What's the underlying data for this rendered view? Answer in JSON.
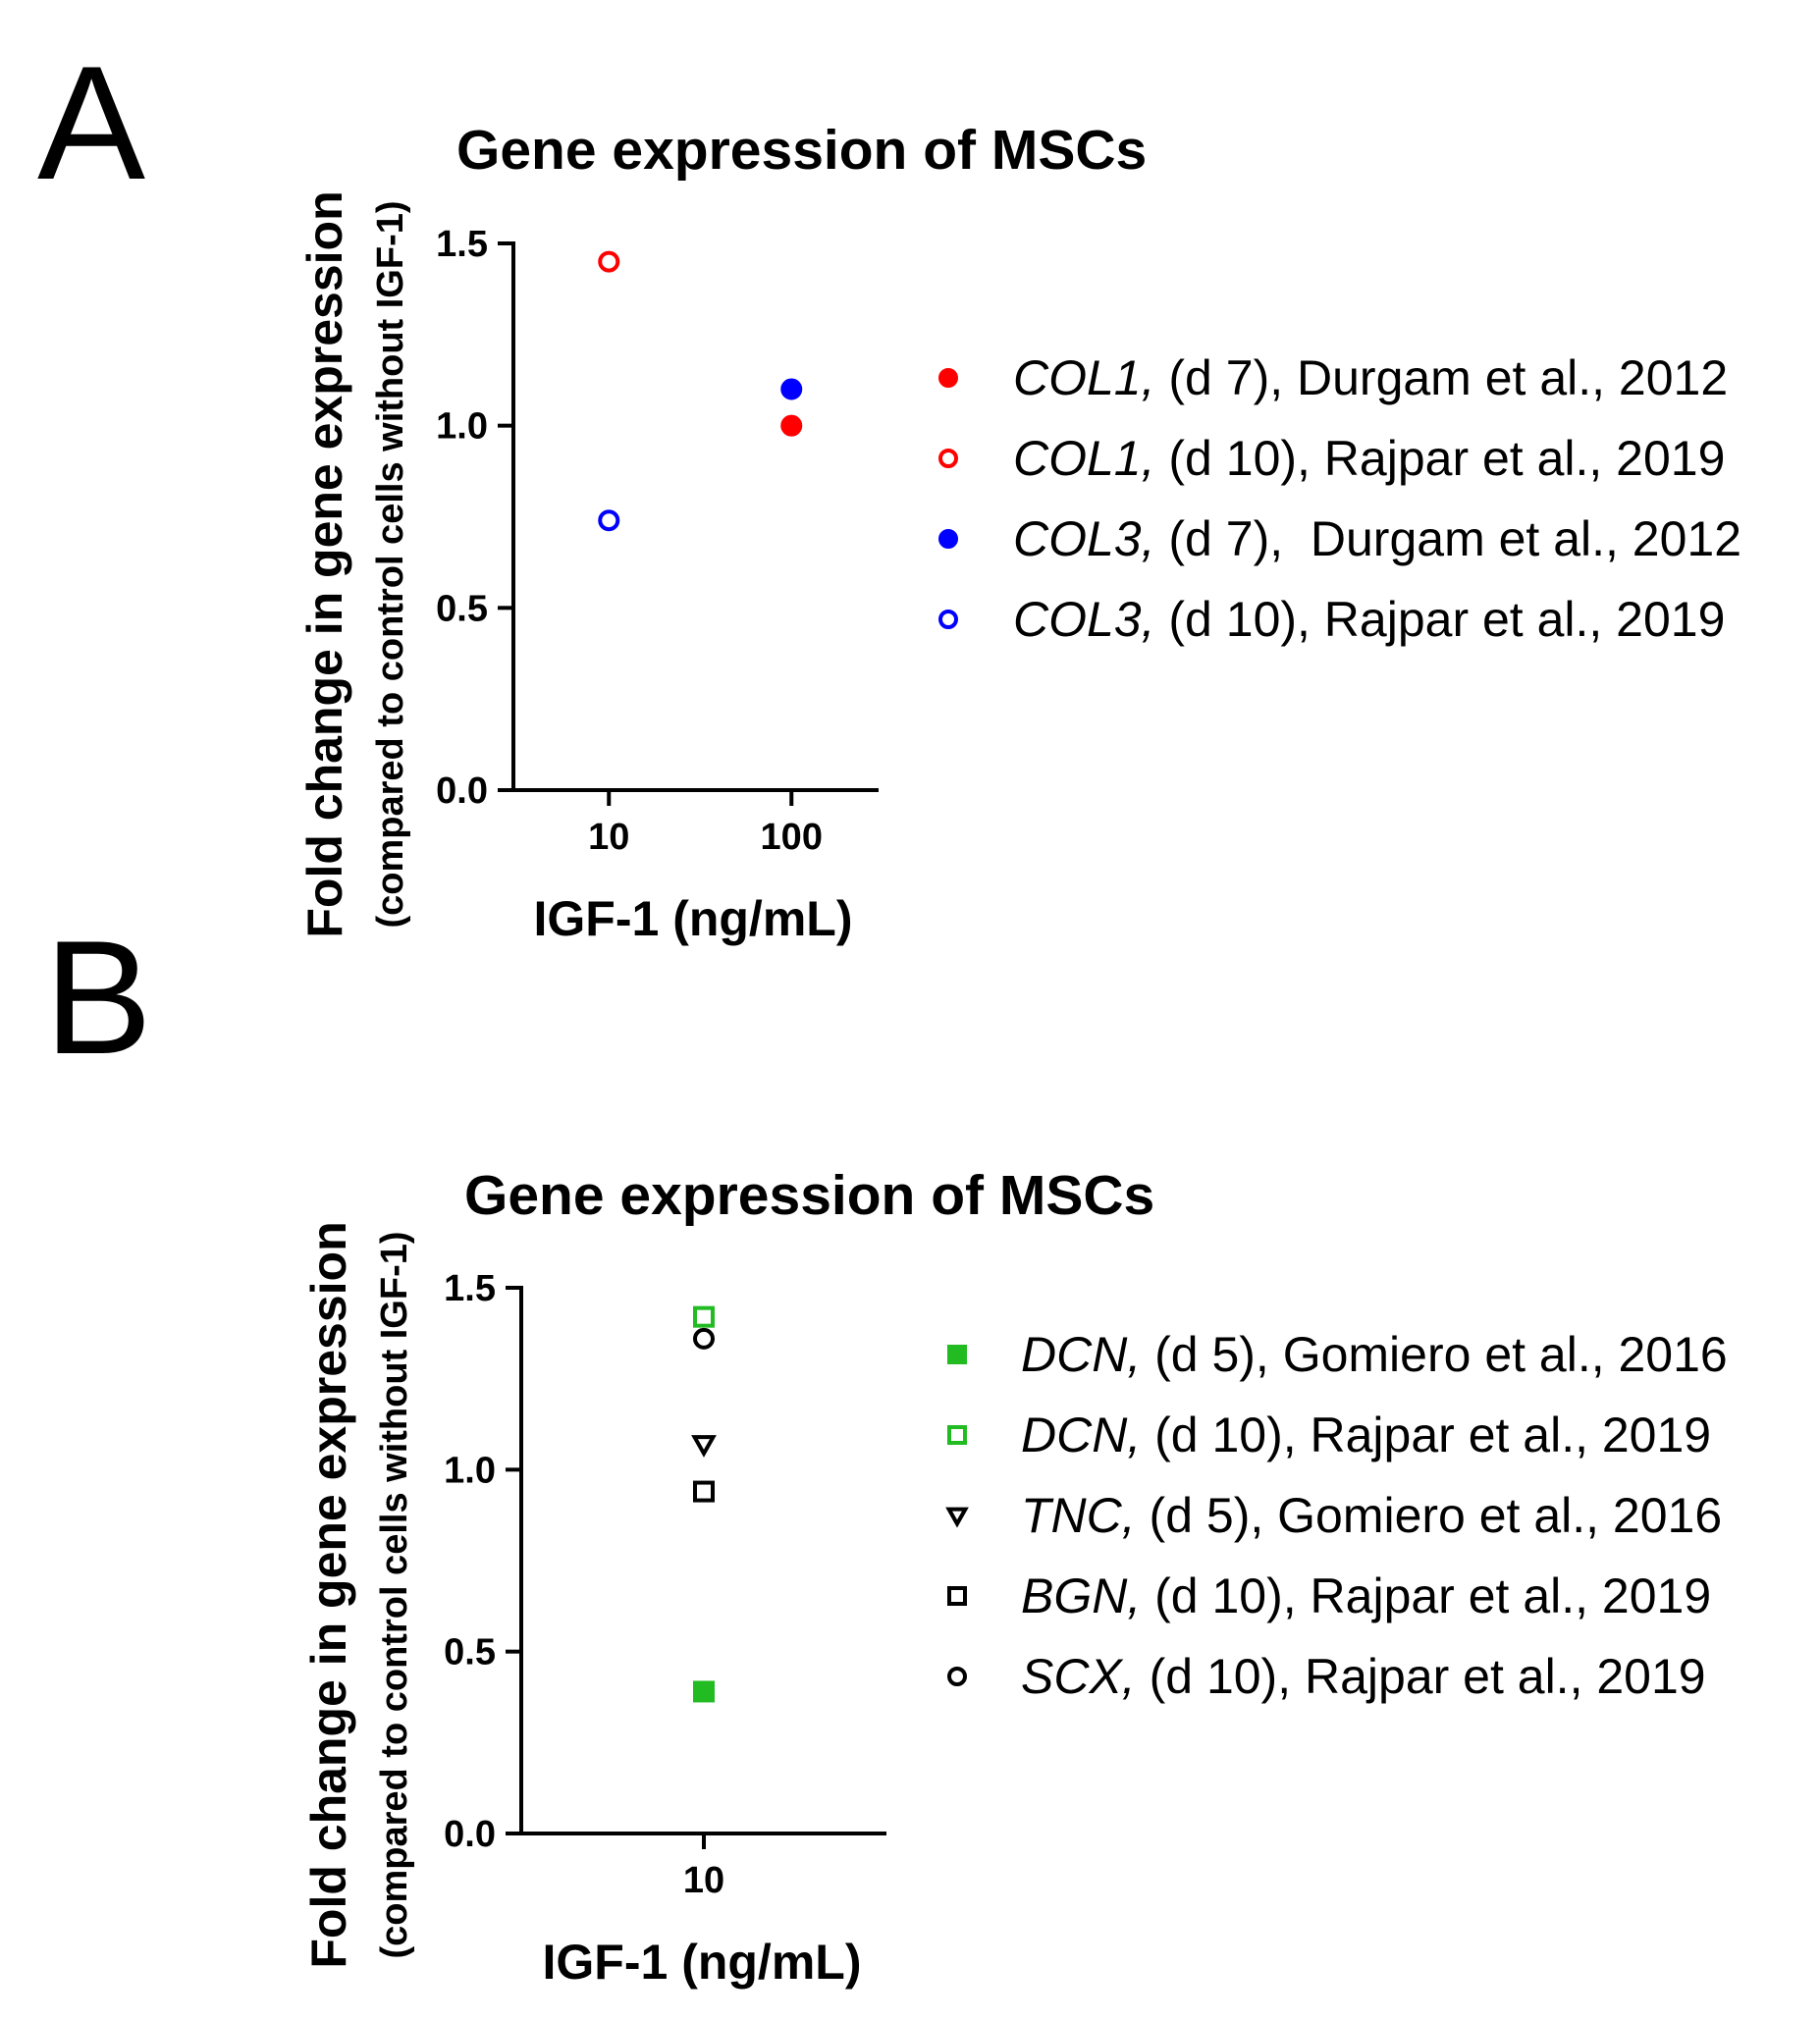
{
  "panels": [
    {
      "letter": "A"
    },
    {
      "letter": "B"
    }
  ],
  "chart_data": [
    {
      "type": "scatter",
      "panel": "A",
      "title": "Gene expression of MSCs",
      "ylabel": "Fold change in gene expression",
      "ylabel_sub": "(compared to control cells without IGF-1)",
      "xlabel": "IGF-1 (ng/mL)",
      "xscale": "log",
      "xlim": [
        3,
        300
      ],
      "ylim": [
        0,
        1.5
      ],
      "xticks": [
        10,
        100
      ],
      "xtick_labels": [
        "10",
        "100"
      ],
      "yticks": [
        0,
        0.5,
        1.0,
        1.5
      ],
      "ytick_labels": [
        "0.0",
        "0.5",
        "1.0",
        "1.5"
      ],
      "legend_position": "right",
      "series": [
        {
          "gene": "COL1,",
          "rest": " (d 7), Durgam et al., 2012",
          "color": "#ff0000",
          "marker": "circle",
          "filled": true,
          "points": [
            {
              "x": 100,
              "y": 1.0
            }
          ]
        },
        {
          "gene": "COL1,",
          "rest": " (d 10), Rajpar et al., 2019",
          "color": "#ff0000",
          "marker": "circle",
          "filled": false,
          "points": [
            {
              "x": 10,
              "y": 1.45
            }
          ]
        },
        {
          "gene": "COL3,",
          "rest": " (d 7),  Durgam et al., 2012",
          "color": "#0000ff",
          "marker": "circle",
          "filled": true,
          "points": [
            {
              "x": 100,
              "y": 1.1
            }
          ]
        },
        {
          "gene": "COL3,",
          "rest": " (d 10), Rajpar et al., 2019",
          "color": "#0000ff",
          "marker": "circle",
          "filled": false,
          "points": [
            {
              "x": 10,
              "y": 0.74
            }
          ]
        }
      ]
    },
    {
      "type": "scatter",
      "panel": "B",
      "title": "Gene expression of MSCs",
      "ylabel": "Fold change in gene expression",
      "ylabel_sub": "(compared to control cells without IGF-1)",
      "xlabel": "IGF-1 (ng/mL)",
      "xscale": "linear",
      "xlim": [
        0,
        20
      ],
      "ylim": [
        0,
        1.5
      ],
      "xticks": [
        10
      ],
      "xtick_labels": [
        "10"
      ],
      "yticks": [
        0,
        0.5,
        1.0,
        1.5
      ],
      "ytick_labels": [
        "0.0",
        "0.5",
        "1.0",
        "1.5"
      ],
      "legend_position": "right",
      "series": [
        {
          "gene": "DCN,",
          "rest": " (d 5), Gomiero et al., 2016",
          "color": "#22bb22",
          "marker": "square",
          "filled": true,
          "points": [
            {
              "x": 10,
              "y": 0.39
            }
          ]
        },
        {
          "gene": "DCN,",
          "rest": " (d 10), Rajpar et al., 2019",
          "color": "#22bb22",
          "marker": "square",
          "filled": false,
          "points": [
            {
              "x": 10,
              "y": 1.42
            }
          ]
        },
        {
          "gene": "TNC,",
          "rest": " (d 5), Gomiero et al., 2016",
          "color": "#000000",
          "marker": "triangle-down",
          "filled": false,
          "points": [
            {
              "x": 10,
              "y": 1.07
            }
          ]
        },
        {
          "gene": "BGN,",
          "rest": " (d 10), Rajpar et al., 2019",
          "color": "#000000",
          "marker": "square",
          "filled": false,
          "points": [
            {
              "x": 10,
              "y": 0.94
            }
          ]
        },
        {
          "gene": "SCX,",
          "rest": " (d 10), Rajpar et al., 2019",
          "color": "#000000",
          "marker": "circle",
          "filled": false,
          "points": [
            {
              "x": 10,
              "y": 1.36
            }
          ]
        }
      ]
    }
  ]
}
